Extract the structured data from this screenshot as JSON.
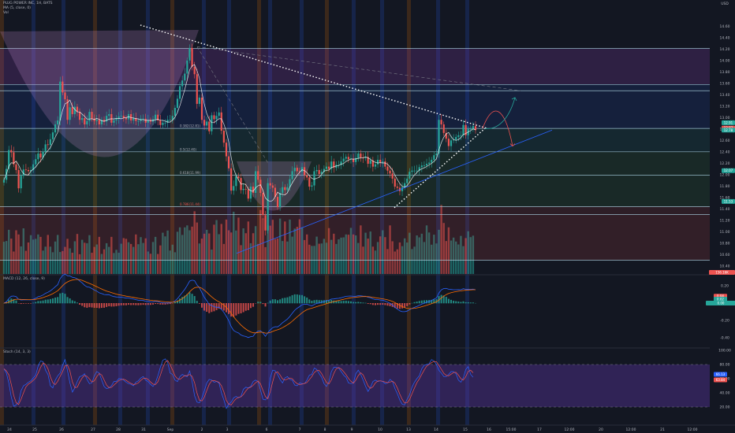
{
  "header": {
    "title": "PLUG POWER INC, 1H, BATS",
    "ma_legend": "MA (5, close, 0)",
    "vol_legend": "Vol",
    "macd_legend": "MACD (12, 26, close, 9)",
    "stoch_legend": "Stoch (14, 3, 3)"
  },
  "currency": "USD",
  "colors": {
    "background": "#131722",
    "up": "#26a69a",
    "down": "#ef5350",
    "ma": "#ffffff",
    "hline": "#b0d8e8",
    "trend_dots": "#ffffff",
    "blue_line": "#2962ff",
    "arrow_up": "#26a69a",
    "arrow_down": "#ef5350",
    "stoch_band": "#673ab7",
    "macd_line": "#2962ff",
    "signal_line": "#ff6d00"
  },
  "price_tags": [
    {
      "text": "12.91",
      "color": "#26a69a"
    },
    {
      "text": "12.87",
      "color": "#ef5350"
    },
    {
      "text": "12.78",
      "color": "#26a69a"
    },
    {
      "text": "12.07",
      "color": "#26a69a"
    },
    {
      "text": "11.53",
      "color": "#26a69a"
    }
  ],
  "volume_tag": {
    "text": "156.16K",
    "color": "#ef5350"
  },
  "macd_tags": [
    {
      "text": "0.04",
      "color": "#ef5350"
    },
    {
      "text": "0.02",
      "color": "#26a69a"
    },
    {
      "text": "0.00",
      "color": "#26a69a"
    }
  ],
  "stoch_tags": [
    {
      "text": "66.13",
      "color": "#2962ff"
    },
    {
      "text": "63.84",
      "color": "#ef5350"
    }
  ],
  "fib_labels": [
    "0.382(12.81)",
    "0.5(12.40)",
    "0.618(11.99)",
    "0.786(11.44)"
  ],
  "chart_data": [
    {
      "type": "candlestick",
      "title": "PLUG POWER INC, 1H, BATS",
      "ylim": [
        10.3,
        14.95
      ],
      "y_ticks": [
        "14.60",
        "14.40",
        "14.20",
        "14.00",
        "13.80",
        "13.60",
        "13.40",
        "13.20",
        "13.00",
        "12.80",
        "12.60",
        "12.40",
        "12.20",
        "12.00",
        "11.80",
        "11.60",
        "11.40",
        "11.20",
        "11.00",
        "10.80",
        "10.60",
        "10.40"
      ],
      "x_ticks": [
        "24",
        "25",
        "26",
        "27",
        "28",
        "31",
        "Sep",
        "2",
        "3",
        "6",
        "7",
        "8",
        "9",
        "10",
        "13",
        "14",
        "15",
        "16",
        "15:00",
        "17",
        "12:00",
        "20",
        "12:00",
        "21",
        "12:00",
        "22",
        "12:00"
      ],
      "horizontal_lines": [
        14.21,
        13.58,
        13.47,
        12.81,
        12.4,
        11.99,
        11.44,
        11.3
      ],
      "closes": [
        11.91,
        12.1,
        12.43,
        12.39,
        12.18,
        12.08,
        11.76,
        11.98,
        12.09,
        12.08,
        12.06,
        12.08,
        12.18,
        12.27,
        12.37,
        12.3,
        12.4,
        12.53,
        12.52,
        12.62,
        12.74,
        12.88,
        12.95,
        13.63,
        13.44,
        13.32,
        12.96,
        13.18,
        13.06,
        13.19,
        13.1,
        12.96,
        12.99,
        12.88,
        12.94,
        13.1,
        12.98,
        12.94,
        12.96,
        12.88,
        12.96,
        12.93,
        13.03,
        13.06,
        12.91,
        12.95,
        12.98,
        13.02,
        13.03,
        12.99,
        12.97,
        13.06,
        12.95,
        12.99,
        12.94,
        12.94,
        12.98,
        12.98,
        12.91,
        12.95,
        12.93,
        12.97,
        13.05,
        12.95,
        12.87,
        12.91,
        12.91,
        12.96,
        12.96,
        13.03,
        13.17,
        13.33,
        13.55,
        13.65,
        13.77,
        14.0,
        14.22,
        13.89,
        13.76,
        13.24,
        13.35,
        12.96,
        12.86,
        12.93,
        12.76,
        13.04,
        12.97,
        13.03,
        13.09,
        12.77,
        12.56,
        12.32,
        12.11,
        11.72,
        11.8,
        11.97,
        11.94,
        11.73,
        11.75,
        11.74,
        11.58,
        11.79,
        11.68,
        12.06,
        11.91,
        11.68,
        11.29,
        11.02,
        11.85,
        11.81,
        11.77,
        11.61,
        11.43,
        11.68,
        11.78,
        11.73,
        11.78,
        11.92,
        12.06,
        12.12,
        12.06,
        12.05,
        12.13,
        11.99,
        11.95,
        11.79,
        11.81,
        12.06,
        12.08,
        12.01,
        12.05,
        12.1,
        12.14,
        12.1,
        12.23,
        12.12,
        12.17,
        12.17,
        12.23,
        12.28,
        12.31,
        12.27,
        12.28,
        12.22,
        12.29,
        12.37,
        12.3,
        12.29,
        12.31,
        12.19,
        12.25,
        12.14,
        12.18,
        12.26,
        12.21,
        12.23,
        12.14,
        12.07,
        12.02,
        11.93,
        11.79,
        11.77,
        11.71,
        11.78,
        11.85,
        11.93,
        12.05,
        12.07,
        12.07,
        12.07,
        12.13,
        12.16,
        12.16,
        12.19,
        12.21,
        12.26,
        12.34,
        12.37,
        12.96,
        12.88,
        12.73,
        12.63,
        12.5,
        12.6,
        12.61,
        12.66,
        12.69,
        12.69,
        12.87,
        12.69,
        12.8,
        12.8,
        12.85,
        12.78
      ],
      "volumes_k": [
        132,
        135,
        181,
        145,
        92,
        179,
        162,
        113,
        187,
        95,
        129,
        159,
        141,
        144,
        162,
        152,
        96,
        112,
        160,
        112,
        89,
        133,
        160,
        90,
        94,
        111,
        144,
        105,
        87,
        134,
        164,
        81,
        140,
        128,
        126,
        159,
        87,
        111,
        121,
        152,
        82,
        101,
        126,
        111,
        152,
        86,
        99,
        87,
        124,
        147,
        144,
        130,
        123,
        111,
        162,
        122,
        151,
        127,
        146,
        92,
        83,
        131,
        152,
        82,
        117,
        169,
        154,
        178,
        96,
        120,
        89,
        173,
        191,
        160,
        191,
        199,
        179,
        194,
        257,
        211,
        125,
        145,
        165,
        181,
        166,
        100,
        202,
        221,
        163,
        205,
        123,
        223,
        179,
        170,
        255,
        178,
        231,
        118,
        187,
        167,
        215,
        126,
        167,
        196,
        123,
        262,
        228,
        110,
        199,
        198,
        222,
        143,
        146,
        227,
        135,
        215,
        133,
        223,
        153,
        186,
        193,
        224,
        191,
        139,
        162,
        120,
        115,
        115,
        153,
        124,
        125,
        144,
        128,
        188,
        140,
        165,
        123,
        142,
        149,
        150,
        162,
        161,
        189,
        162,
        158,
        127,
        199,
        112,
        169,
        145,
        174,
        112,
        96,
        131,
        154,
        179,
        151,
        102,
        199,
        134,
        92,
        101,
        129,
        114,
        146,
        129,
        169,
        102,
        112,
        158,
        150,
        165,
        131,
        199,
        170,
        120,
        161,
        125,
        181,
        283,
        209,
        135,
        191,
        137,
        149,
        133,
        121,
        156,
        114,
        147,
        175,
        151,
        157
      ],
      "macd_ylim": [
        -0.5,
        0.3
      ],
      "macd_ticks": [
        "0.20",
        "0.00",
        "-0.20",
        "-0.40"
      ],
      "stoch_ylim": [
        0,
        100
      ],
      "stoch_ticks": [
        "100.00",
        "80.00",
        "60.00",
        "40.00",
        "20.00"
      ],
      "stoch_k": [
        74,
        68,
        54,
        34,
        21,
        23,
        27,
        43,
        50,
        52,
        55,
        57,
        61,
        65,
        78,
        85,
        84,
        72,
        66,
        50,
        47,
        58,
        64,
        68,
        79,
        87,
        71,
        54,
        41,
        47,
        56,
        63,
        64,
        67,
        59,
        53,
        54,
        64,
        70,
        68,
        58,
        49,
        46,
        47,
        50,
        56,
        56,
        60,
        60,
        58,
        55,
        53,
        52,
        50,
        55,
        57,
        61,
        63,
        58,
        56,
        52,
        49,
        54,
        64,
        76,
        86,
        88,
        83,
        68,
        66,
        58,
        56,
        63,
        66,
        64,
        63,
        71,
        56,
        36,
        27,
        26,
        33,
        43,
        54,
        59,
        58,
        55,
        56,
        54,
        40,
        30,
        18,
        24,
        27,
        33,
        35,
        33,
        35,
        45,
        48,
        47,
        49,
        56,
        58,
        56,
        44,
        31,
        30,
        34,
        61,
        72,
        71,
        66,
        59,
        54,
        61,
        63,
        59,
        58,
        51,
        50,
        54,
        53,
        53,
        58,
        65,
        66,
        75,
        73,
        67,
        62,
        53,
        49,
        56,
        70,
        76,
        76,
        75,
        70,
        65,
        62,
        54,
        53,
        54,
        67,
        72,
        66,
        58,
        49,
        42,
        48,
        56,
        58,
        56,
        57,
        56,
        53,
        54,
        59,
        56,
        46,
        39,
        30,
        24,
        23,
        31,
        37,
        48,
        55,
        60,
        64,
        74,
        79,
        80,
        81,
        87,
        85,
        80,
        72,
        68,
        63,
        63,
        66,
        70,
        70,
        67,
        58,
        55,
        61,
        73,
        77,
        66,
        62
      ]
    }
  ]
}
